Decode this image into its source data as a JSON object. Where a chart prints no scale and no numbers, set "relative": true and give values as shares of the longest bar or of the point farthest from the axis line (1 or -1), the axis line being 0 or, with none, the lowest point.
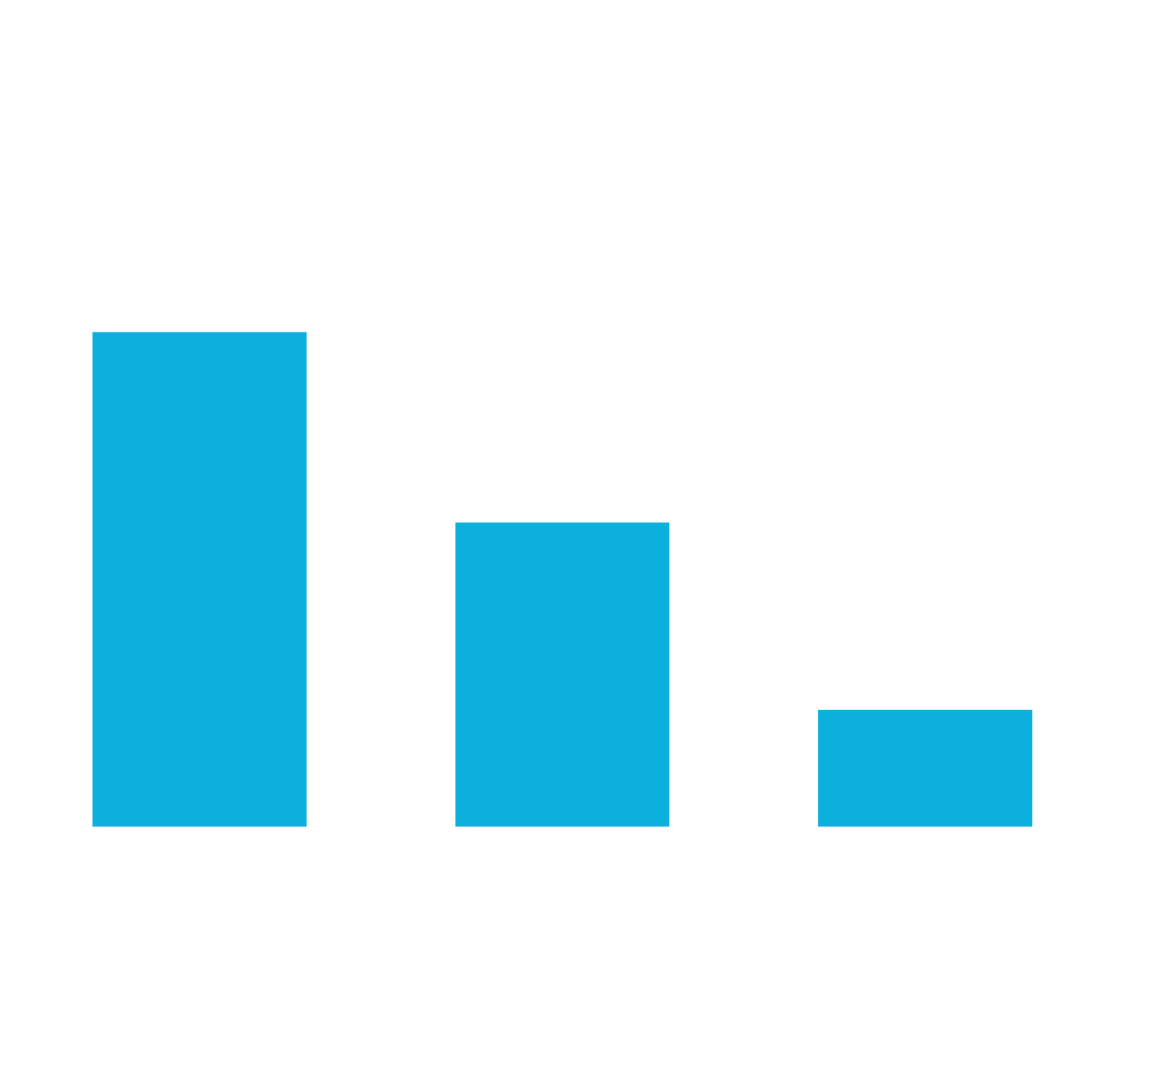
{
  "chart_data": {
    "type": "bar",
    "relative": true,
    "categories": [
      null,
      null,
      null
    ],
    "values": [
      1,
      0.615,
      0.236
    ],
    "color": "#0bb0dc",
    "grid": false
  }
}
